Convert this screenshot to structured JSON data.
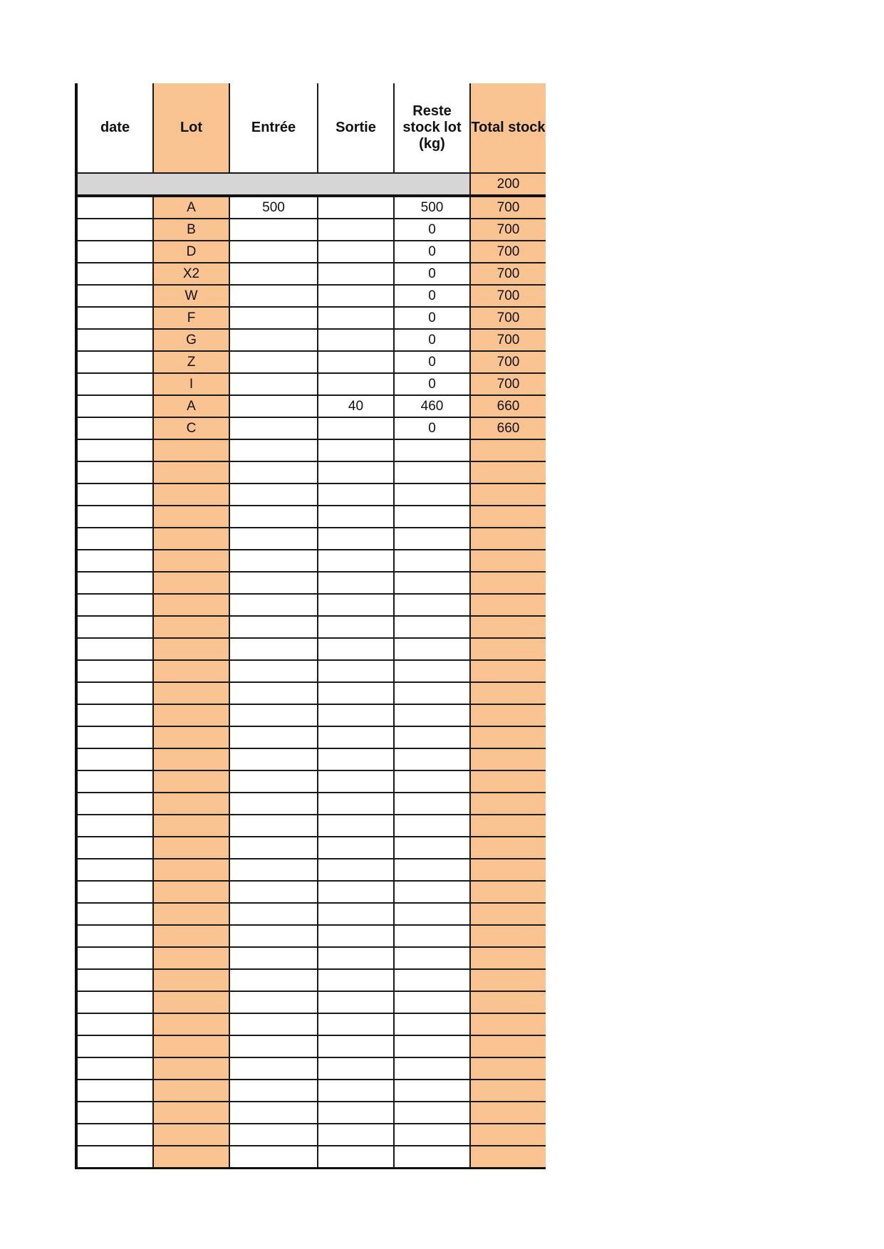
{
  "headers": [
    "date",
    "Lot",
    "Entrée",
    "Sortie",
    "Reste stock lot (kg)",
    "Total stock"
  ],
  "initial_total": "200",
  "rows": [
    {
      "date": "",
      "lot": "A",
      "entree": "500",
      "sortie": "",
      "reste": "500",
      "total": "700"
    },
    {
      "date": "",
      "lot": "B",
      "entree": "",
      "sortie": "",
      "reste": "0",
      "total": "700"
    },
    {
      "date": "",
      "lot": "D",
      "entree": "",
      "sortie": "",
      "reste": "0",
      "total": "700"
    },
    {
      "date": "",
      "lot": "X2",
      "entree": "",
      "sortie": "",
      "reste": "0",
      "total": "700"
    },
    {
      "date": "",
      "lot": "W",
      "entree": "",
      "sortie": "",
      "reste": "0",
      "total": "700"
    },
    {
      "date": "",
      "lot": "F",
      "entree": "",
      "sortie": "",
      "reste": "0",
      "total": "700"
    },
    {
      "date": "",
      "lot": "G",
      "entree": "",
      "sortie": "",
      "reste": "0",
      "total": "700"
    },
    {
      "date": "",
      "lot": "Z",
      "entree": "",
      "sortie": "",
      "reste": "0",
      "total": "700"
    },
    {
      "date": "",
      "lot": "I",
      "entree": "",
      "sortie": "",
      "reste": "0",
      "total": "700"
    },
    {
      "date": "",
      "lot": "A",
      "entree": "",
      "sortie": "40",
      "reste": "460",
      "total": "660"
    },
    {
      "date": "",
      "lot": "C",
      "entree": "",
      "sortie": "",
      "reste": "0",
      "total": "660"
    }
  ],
  "empty_rows": 33,
  "colors": {
    "highlight": "#f8c291",
    "initial_row": "#d6d6d6"
  }
}
